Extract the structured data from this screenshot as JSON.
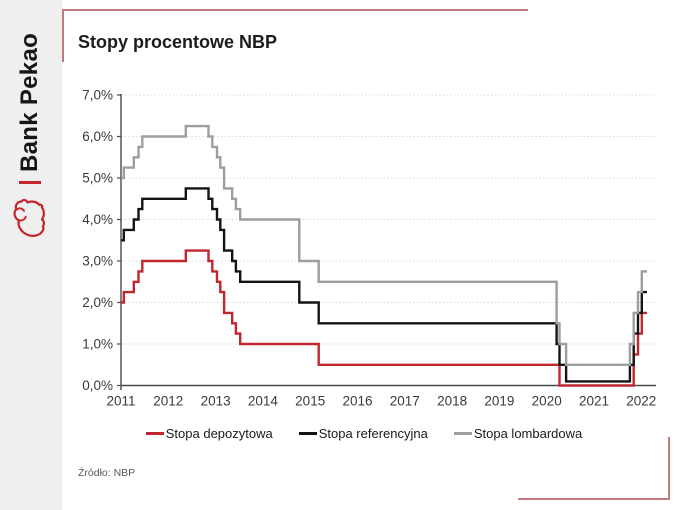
{
  "brand": {
    "name": "Bank Pekao",
    "logo_icon": "pekao-bison-icon"
  },
  "header": {
    "title": "Stopy procentowe NBP"
  },
  "footer": {
    "source": "Źródło: NBP"
  },
  "colors": {
    "accent_frame": "#bc7b7f",
    "brand_red": "#c5262c",
    "sidebar_bg": "#efeff0",
    "grid": "#d9d9d9",
    "axis": "#4a4a4a"
  },
  "chart_data": {
    "type": "line",
    "step": true,
    "title": "Stopy procentowe NBP",
    "xlabel": "",
    "ylabel": "",
    "ylim": [
      0,
      7
    ],
    "xlim": [
      2011,
      2022.31
    ],
    "x_end": 2022.12,
    "grid": "horizontal-dotted",
    "legend_position": "bottom",
    "y_tick_labels": [
      "0,0%",
      "1,0%",
      "2,0%",
      "3,0%",
      "4,0%",
      "5,0%",
      "6,0%",
      "7,0%"
    ],
    "x_tick_labels": [
      "2011",
      "2012",
      "2013",
      "2014",
      "2015",
      "2016",
      "2017",
      "2018",
      "2019",
      "2020",
      "2021",
      "2022"
    ],
    "series": [
      {
        "name": "Stopa depozytowa",
        "color": "#c2262e",
        "points": [
          [
            2011.0,
            2.0
          ],
          [
            2011.06,
            2.25
          ],
          [
            2011.27,
            2.5
          ],
          [
            2011.37,
            2.75
          ],
          [
            2011.45,
            3.0
          ],
          [
            2012.37,
            3.25
          ],
          [
            2012.85,
            3.0
          ],
          [
            2012.93,
            2.75
          ],
          [
            2013.03,
            2.5
          ],
          [
            2013.1,
            2.25
          ],
          [
            2013.18,
            1.75
          ],
          [
            2013.35,
            1.5
          ],
          [
            2013.43,
            1.25
          ],
          [
            2013.52,
            1.0
          ],
          [
            2015.18,
            0.5
          ],
          [
            2020.27,
            0.0
          ],
          [
            2021.84,
            0.75
          ],
          [
            2021.93,
            1.25
          ],
          [
            2022.01,
            1.75
          ]
        ]
      },
      {
        "name": "Stopa referencyjna",
        "color": "#141414",
        "points": [
          [
            2011.0,
            3.5
          ],
          [
            2011.06,
            3.75
          ],
          [
            2011.27,
            4.0
          ],
          [
            2011.37,
            4.25
          ],
          [
            2011.45,
            4.5
          ],
          [
            2012.37,
            4.75
          ],
          [
            2012.85,
            4.5
          ],
          [
            2012.93,
            4.25
          ],
          [
            2013.03,
            4.0
          ],
          [
            2013.1,
            3.75
          ],
          [
            2013.18,
            3.25
          ],
          [
            2013.35,
            3.0
          ],
          [
            2013.43,
            2.75
          ],
          [
            2013.52,
            2.5
          ],
          [
            2014.77,
            2.0
          ],
          [
            2015.18,
            1.5
          ],
          [
            2020.21,
            1.0
          ],
          [
            2020.27,
            0.5
          ],
          [
            2020.41,
            0.1
          ],
          [
            2021.76,
            0.5
          ],
          [
            2021.84,
            1.25
          ],
          [
            2021.93,
            1.75
          ],
          [
            2022.01,
            2.25
          ]
        ]
      },
      {
        "name": "Stopa lombardowa",
        "color": "#9e9e9e",
        "points": [
          [
            2011.0,
            5.0
          ],
          [
            2011.06,
            5.25
          ],
          [
            2011.27,
            5.5
          ],
          [
            2011.37,
            5.75
          ],
          [
            2011.45,
            6.0
          ],
          [
            2012.37,
            6.25
          ],
          [
            2012.85,
            6.0
          ],
          [
            2012.93,
            5.75
          ],
          [
            2013.03,
            5.5
          ],
          [
            2013.1,
            5.25
          ],
          [
            2013.18,
            4.75
          ],
          [
            2013.35,
            4.5
          ],
          [
            2013.43,
            4.25
          ],
          [
            2013.52,
            4.0
          ],
          [
            2014.77,
            3.0
          ],
          [
            2015.18,
            2.5
          ],
          [
            2020.21,
            1.5
          ],
          [
            2020.27,
            1.0
          ],
          [
            2020.41,
            0.5
          ],
          [
            2021.76,
            1.0
          ],
          [
            2021.84,
            1.75
          ],
          [
            2021.93,
            2.25
          ],
          [
            2022.01,
            2.75
          ]
        ]
      }
    ]
  }
}
